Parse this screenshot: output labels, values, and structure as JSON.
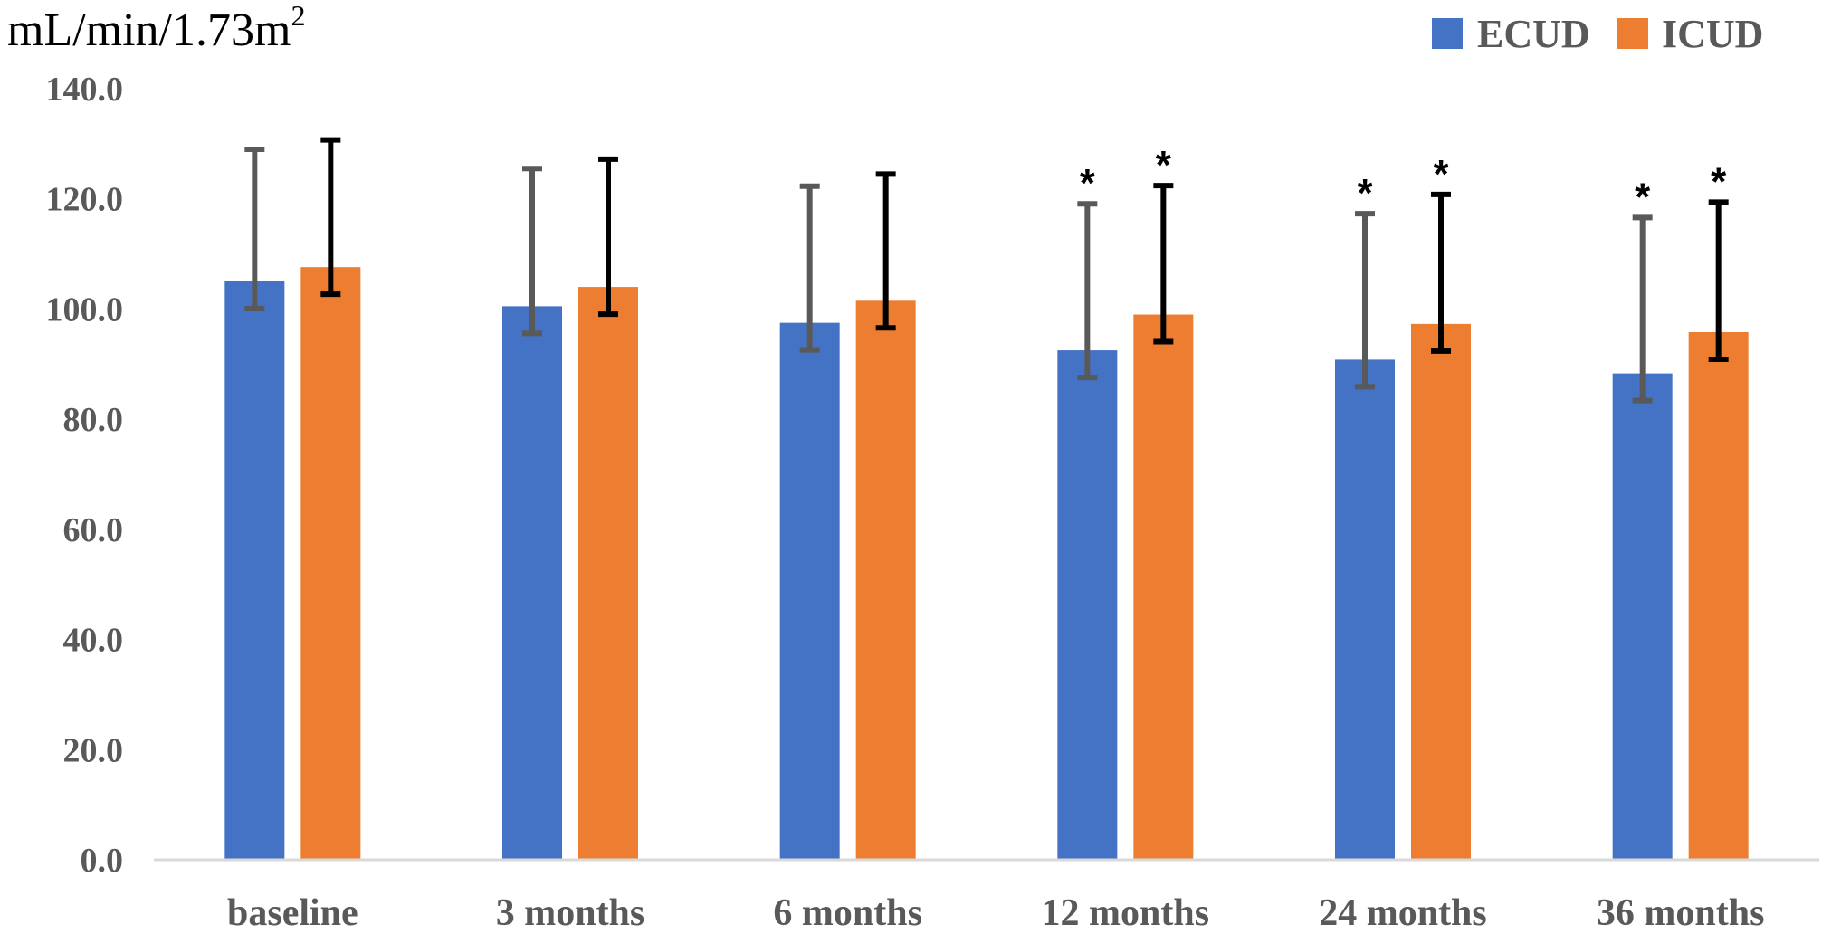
{
  "chart_data": {
    "type": "bar",
    "title": "",
    "ylabel": "mL/min/1.73m",
    "ylabel_superscript": "2",
    "xlabel": "",
    "ylim": [
      0,
      140
    ],
    "yticks": [
      "0.0",
      "20.0",
      "40.0",
      "60.0",
      "80.0",
      "100.0",
      "120.0",
      "140.0"
    ],
    "categories": [
      "baseline",
      "3 months",
      "6 months",
      "12 months",
      "24 months",
      "36 months"
    ],
    "series": [
      {
        "name": "ECUD",
        "color": "#4472C4",
        "error_color": "#595959",
        "values": [
          105.0,
          100.5,
          97.5,
          92.5,
          90.8,
          88.3
        ],
        "error": [
          24.0,
          25.0,
          24.8,
          26.6,
          26.5,
          28.3
        ],
        "significance": [
          "",
          "",
          "",
          "*",
          "*",
          "*"
        ]
      },
      {
        "name": "ICUD",
        "color": "#ED7D31",
        "error_color": "#000000",
        "values": [
          107.6,
          104.0,
          101.5,
          99.0,
          97.3,
          95.8
        ],
        "error": [
          23.1,
          23.2,
          23.0,
          23.4,
          23.5,
          23.6
        ],
        "significance": [
          "",
          "",
          "",
          "*",
          "*",
          "*"
        ]
      }
    ],
    "legend_position": "top-right",
    "grid": false
  }
}
